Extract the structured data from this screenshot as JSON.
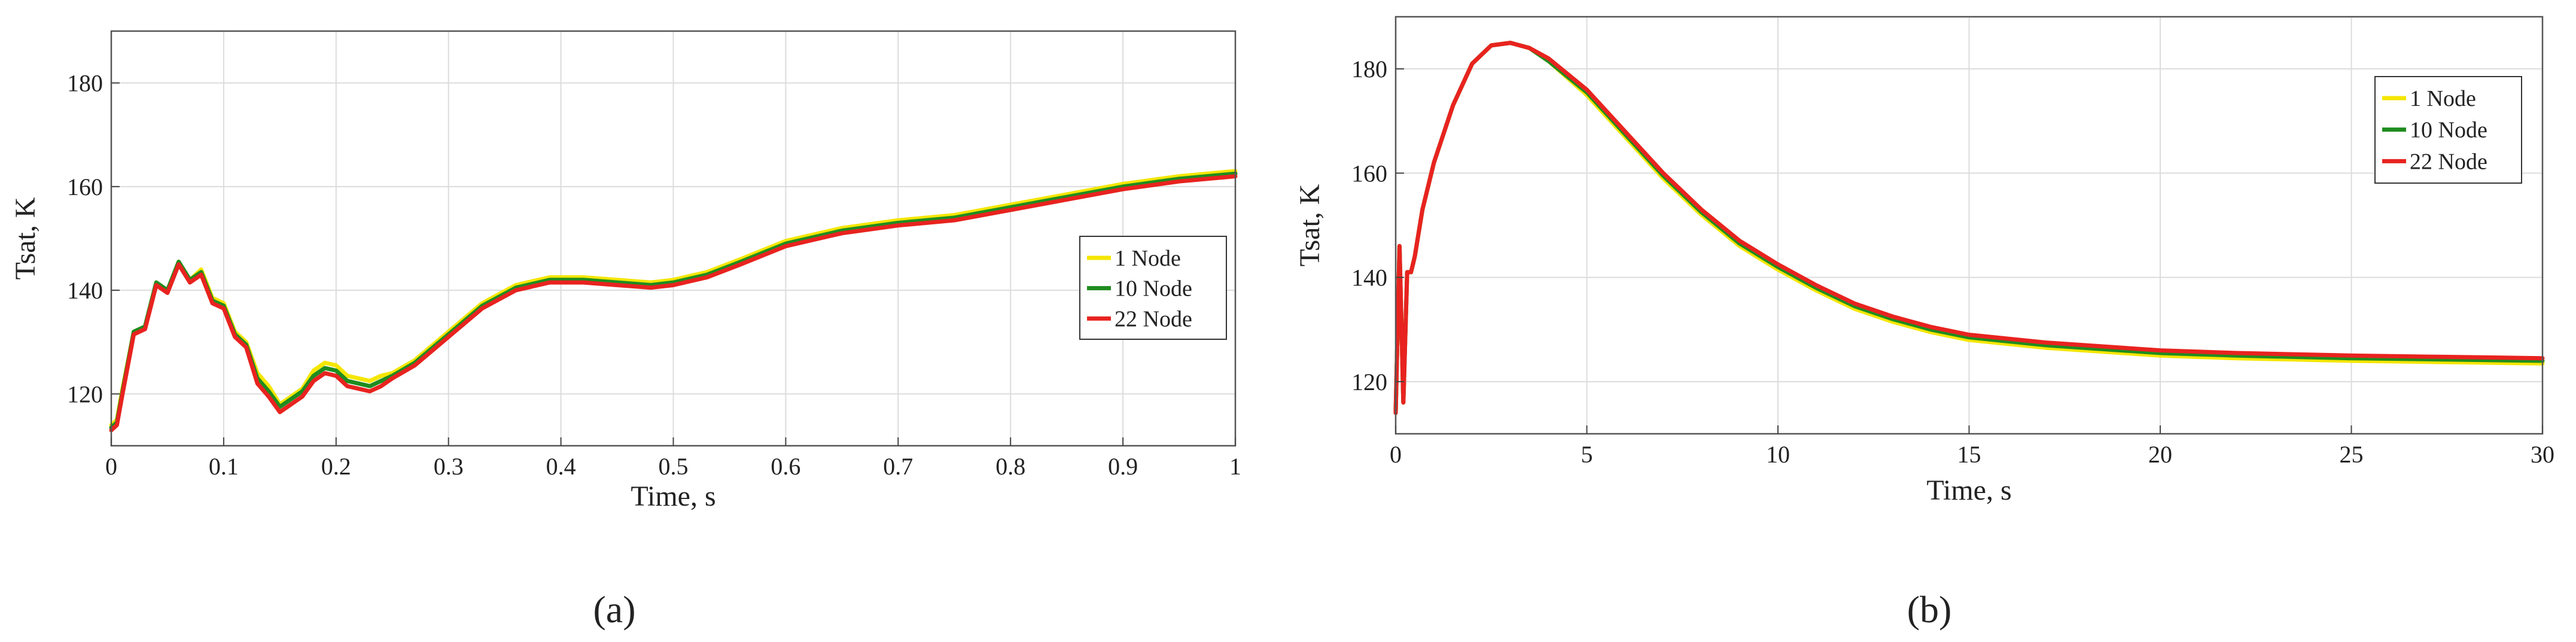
{
  "figure": {
    "panels": [
      "a",
      "b"
    ],
    "panel_labels": [
      "(a)",
      "(b)"
    ]
  },
  "chart_data": [
    {
      "id": "a",
      "type": "line",
      "xlabel": "Time, s",
      "ylabel": "Tsat, K",
      "xlim": [
        0,
        1
      ],
      "ylim": [
        110,
        190
      ],
      "xticks": [
        0,
        0.1,
        0.2,
        0.3,
        0.4,
        0.5,
        0.6,
        0.7,
        0.8,
        0.9,
        1
      ],
      "xtick_labels": [
        "0",
        "0.1",
        "0.2",
        "0.3",
        "0.4",
        "0.5",
        "0.6",
        "0.7",
        "0.8",
        "0.9",
        "1"
      ],
      "yticks": [
        120,
        140,
        160,
        180
      ],
      "ytick_labels": [
        "120",
        "140",
        "160",
        "180"
      ],
      "grid": true,
      "legend_position": "right",
      "series": [
        {
          "name": "1 Node",
          "color": "#f5e600",
          "x": [
            0,
            0.005,
            0.01,
            0.02,
            0.03,
            0.04,
            0.05,
            0.06,
            0.07,
            0.08,
            0.09,
            0.1,
            0.11,
            0.12,
            0.13,
            0.14,
            0.15,
            0.16,
            0.17,
            0.18,
            0.19,
            0.2,
            0.21,
            0.22,
            0.23,
            0.24,
            0.25,
            0.27,
            0.3,
            0.33,
            0.36,
            0.39,
            0.42,
            0.45,
            0.48,
            0.5,
            0.53,
            0.56,
            0.6,
            0.65,
            0.7,
            0.75,
            0.8,
            0.85,
            0.9,
            0.95,
            1
          ],
          "y": [
            114,
            115,
            121,
            132,
            133,
            141.5,
            140,
            145.5,
            142,
            144,
            138.5,
            137.5,
            132,
            130,
            124,
            121.5,
            118,
            119.5,
            121,
            124.5,
            126,
            125.5,
            123.5,
            123,
            122.5,
            123.5,
            124,
            126.5,
            132,
            137.5,
            141,
            142.5,
            142.5,
            142,
            141.5,
            142,
            143.5,
            146,
            149.5,
            152,
            153.5,
            154.5,
            156.5,
            158.5,
            160.5,
            162,
            163
          ]
        },
        {
          "name": "10 Node",
          "color": "#1f8c1f",
          "x": [
            0,
            0.005,
            0.01,
            0.02,
            0.03,
            0.04,
            0.05,
            0.06,
            0.07,
            0.08,
            0.09,
            0.1,
            0.11,
            0.12,
            0.13,
            0.14,
            0.15,
            0.16,
            0.17,
            0.18,
            0.19,
            0.2,
            0.21,
            0.22,
            0.23,
            0.24,
            0.25,
            0.27,
            0.3,
            0.33,
            0.36,
            0.39,
            0.42,
            0.45,
            0.48,
            0.5,
            0.53,
            0.56,
            0.6,
            0.65,
            0.7,
            0.75,
            0.8,
            0.85,
            0.9,
            0.95,
            1
          ],
          "y": [
            113.5,
            114.5,
            120.5,
            132,
            133,
            141.5,
            140,
            145.5,
            142,
            143.5,
            138,
            137,
            131.5,
            129.5,
            123,
            120.5,
            117.5,
            119,
            120.5,
            123.5,
            125,
            124.5,
            122.5,
            122,
            121.5,
            122.5,
            123.5,
            126,
            131.5,
            137,
            140.5,
            142,
            142,
            141.5,
            141,
            141.5,
            143,
            145.5,
            149,
            151.5,
            153,
            154,
            156,
            158,
            160,
            161.5,
            162.5
          ]
        },
        {
          "name": "22 Node",
          "color": "#e8231f",
          "x": [
            0,
            0.005,
            0.01,
            0.02,
            0.03,
            0.04,
            0.05,
            0.06,
            0.07,
            0.08,
            0.09,
            0.1,
            0.11,
            0.12,
            0.13,
            0.14,
            0.15,
            0.16,
            0.17,
            0.18,
            0.19,
            0.2,
            0.21,
            0.22,
            0.23,
            0.24,
            0.25,
            0.27,
            0.3,
            0.33,
            0.36,
            0.39,
            0.42,
            0.45,
            0.48,
            0.5,
            0.53,
            0.56,
            0.6,
            0.65,
            0.7,
            0.75,
            0.8,
            0.85,
            0.9,
            0.95,
            1
          ],
          "y": [
            113,
            114,
            120,
            131.5,
            132.5,
            141,
            139.5,
            145,
            141.5,
            143,
            137.5,
            136.5,
            131,
            129,
            122,
            119.5,
            116.5,
            118,
            119.5,
            122.5,
            124,
            123.5,
            121.5,
            121,
            120.5,
            121.5,
            123,
            125.5,
            131,
            136.5,
            140,
            141.5,
            141.5,
            141,
            140.5,
            141,
            142.5,
            145,
            148.5,
            151,
            152.5,
            153.5,
            155.5,
            157.5,
            159.5,
            161,
            162
          ]
        }
      ]
    },
    {
      "id": "b",
      "type": "line",
      "xlabel": "Time, s",
      "ylabel": "Tsat, K",
      "xlim": [
        0,
        30
      ],
      "ylim": [
        110,
        190
      ],
      "xticks": [
        0,
        5,
        10,
        15,
        20,
        25,
        30
      ],
      "xtick_labels": [
        "0",
        "5",
        "10",
        "15",
        "20",
        "25",
        "30"
      ],
      "yticks": [
        120,
        140,
        160,
        180
      ],
      "ytick_labels": [
        "120",
        "140",
        "160",
        "180"
      ],
      "grid": true,
      "legend_position": "top-right",
      "series": [
        {
          "name": "1 Node",
          "color": "#f5e600",
          "x": [
            0,
            0.1,
            0.2,
            0.3,
            0.4,
            0.5,
            0.7,
            1,
            1.5,
            2,
            2.5,
            3,
            3.5,
            4,
            5,
            6,
            7,
            8,
            9,
            10,
            11,
            12,
            13,
            14,
            15,
            17,
            20,
            22,
            25,
            27,
            30
          ],
          "y": [
            114,
            146,
            116,
            141,
            141,
            144,
            153,
            162,
            173,
            181,
            184.5,
            185,
            184,
            181.5,
            175,
            167,
            159,
            152,
            146,
            141.5,
            137.5,
            134,
            131.5,
            129.5,
            128,
            126.5,
            125,
            124.5,
            124,
            123.8,
            123.5
          ]
        },
        {
          "name": "10 Node",
          "color": "#1f8c1f",
          "x": [
            0,
            0.1,
            0.2,
            0.3,
            0.4,
            0.5,
            0.7,
            1,
            1.5,
            2,
            2.5,
            3,
            3.5,
            4,
            5,
            6,
            7,
            8,
            9,
            10,
            11,
            12,
            13,
            14,
            15,
            17,
            20,
            22,
            25,
            27,
            30
          ],
          "y": [
            114,
            146,
            116,
            141,
            141,
            144,
            153,
            162,
            173,
            181,
            184.5,
            185,
            184,
            181.5,
            175.5,
            167.5,
            159.5,
            152.5,
            146.5,
            142,
            138,
            134.5,
            132,
            130,
            128.5,
            127,
            125.5,
            125,
            124.5,
            124.3,
            124
          ]
        },
        {
          "name": "22 Node",
          "color": "#e8231f",
          "x": [
            0,
            0.1,
            0.2,
            0.3,
            0.4,
            0.5,
            0.7,
            1,
            1.5,
            2,
            2.5,
            3,
            3.5,
            4,
            5,
            6,
            7,
            8,
            9,
            10,
            11,
            12,
            13,
            14,
            15,
            17,
            20,
            22,
            25,
            27,
            30
          ],
          "y": [
            114,
            146,
            116,
            141,
            141,
            144,
            153,
            162,
            173,
            181,
            184.5,
            185,
            184,
            182,
            176,
            168,
            160,
            153,
            147,
            142.5,
            138.5,
            135,
            132.5,
            130.5,
            129,
            127.5,
            126,
            125.5,
            125,
            124.8,
            124.5
          ]
        }
      ]
    }
  ]
}
